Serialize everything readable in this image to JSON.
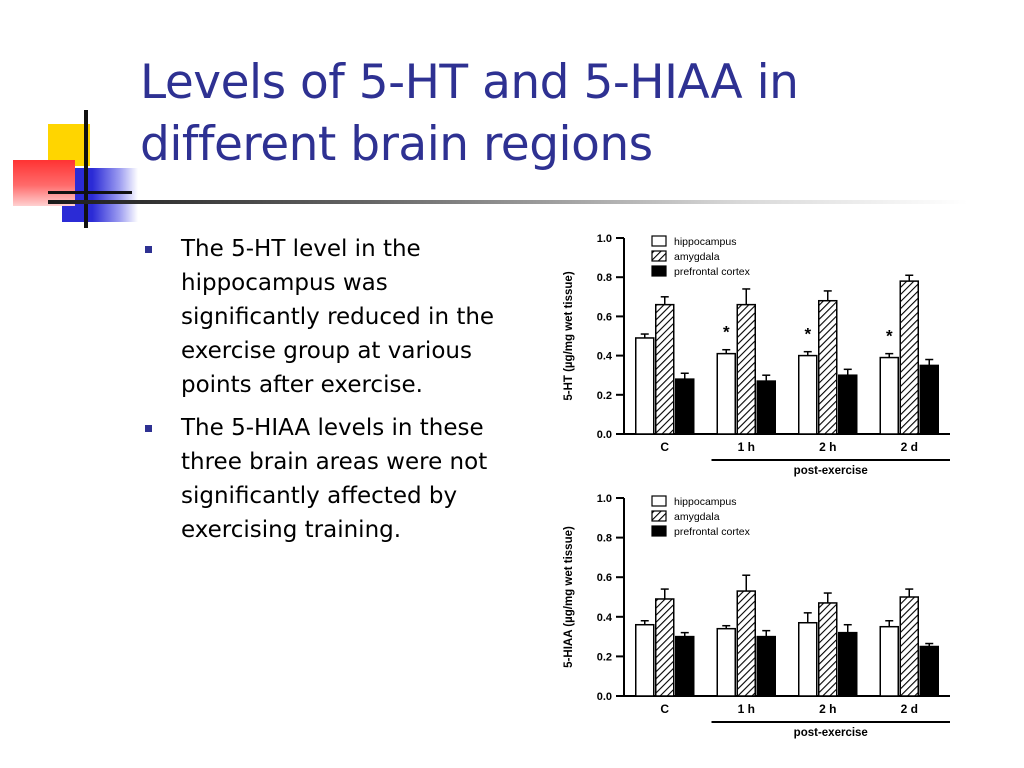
{
  "slide": {
    "title": "Levels of 5-HT and 5-HIAA in different brain regions",
    "bullets": [
      "The 5-HT level in the hippocampus was significantly reduced in the exercise group at various points after exercise.",
      "The 5-HIAA levels in these three brain areas were not significantly affected by exercising training."
    ],
    "colors": {
      "title": "#2e3192",
      "bullet_mark": "#2e3192",
      "deco_yellow": "#ffd500",
      "deco_red": "#ff3333",
      "deco_blue": "#2b2bd6"
    }
  },
  "chart_data": [
    {
      "type": "bar",
      "title": "",
      "ylabel": "5-HT (µg/mg wet tissue)",
      "xlabel": "",
      "group_label": "post-exercise",
      "categories": [
        "C",
        "1 h",
        "2 h",
        "2 d"
      ],
      "ylim": [
        0.0,
        1.0
      ],
      "yticks": [
        "0.0",
        "0.2",
        "0.4",
        "0.6",
        "0.8",
        "1.0"
      ],
      "legend_position": "top-right",
      "series": [
        {
          "name": "hippocampus",
          "fill": "open",
          "values": [
            0.49,
            0.41,
            0.4,
            0.39
          ],
          "errors": [
            0.02,
            0.02,
            0.02,
            0.02
          ]
        },
        {
          "name": "amygdala",
          "fill": "hatched",
          "values": [
            0.66,
            0.66,
            0.68,
            0.78
          ],
          "errors": [
            0.04,
            0.08,
            0.05,
            0.03
          ]
        },
        {
          "name": "prefrontal cortex",
          "fill": "solid",
          "values": [
            0.28,
            0.27,
            0.3,
            0.35
          ],
          "errors": [
            0.03,
            0.03,
            0.03,
            0.03
          ]
        }
      ],
      "significance": {
        "series": "hippocampus",
        "categories": [
          "1 h",
          "2 h",
          "2 d"
        ],
        "symbol": "*"
      }
    },
    {
      "type": "bar",
      "title": "",
      "ylabel": "5-HIAA (µg/mg wet tissue)",
      "xlabel": "",
      "group_label": "post-exercise",
      "categories": [
        "C",
        "1 h",
        "2 h",
        "2 d"
      ],
      "ylim": [
        0.0,
        1.0
      ],
      "yticks": [
        "0.0",
        "0.2",
        "0.4",
        "0.6",
        "0.8",
        "1.0"
      ],
      "legend_position": "top-right",
      "series": [
        {
          "name": "hippocampus",
          "fill": "open",
          "values": [
            0.36,
            0.34,
            0.37,
            0.35
          ],
          "errors": [
            0.02,
            0.015,
            0.05,
            0.03
          ]
        },
        {
          "name": "amygdala",
          "fill": "hatched",
          "values": [
            0.49,
            0.53,
            0.47,
            0.5
          ],
          "errors": [
            0.05,
            0.08,
            0.05,
            0.04
          ]
        },
        {
          "name": "prefrontal cortex",
          "fill": "solid",
          "values": [
            0.3,
            0.3,
            0.32,
            0.25
          ],
          "errors": [
            0.02,
            0.03,
            0.04,
            0.015
          ]
        }
      ],
      "significance": null
    }
  ]
}
